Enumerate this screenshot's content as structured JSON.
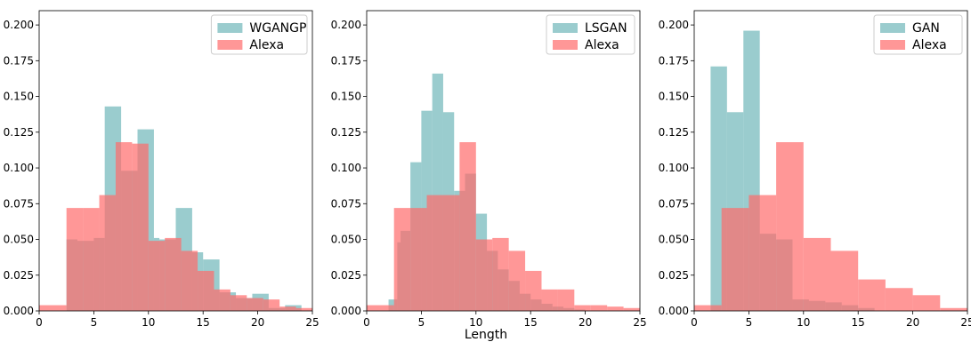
{
  "figure": {
    "xlabel": "Length",
    "colors": {
      "generated": "#6fb6b9",
      "real": "#ff6b6b",
      "generated_alpha": 0.7,
      "real_alpha": 0.7
    }
  },
  "chart_data": [
    {
      "type": "bar",
      "title": "",
      "xlabel": "",
      "ylabel": "",
      "xlim": [
        0,
        25
      ],
      "ylim": [
        0,
        0.21
      ],
      "xticks": [
        "0",
        "5",
        "10",
        "15",
        "20",
        "25"
      ],
      "yticks": [
        "0.000",
        "0.025",
        "0.050",
        "0.075",
        "0.100",
        "0.125",
        "0.150",
        "0.175",
        "0.200"
      ],
      "legend_position": "top-right",
      "series": [
        {
          "name": "WGANGP",
          "edges": [
            2.5,
            3.5,
            5,
            6,
            7.5,
            9,
            10.5,
            11,
            12.5,
            14,
            15,
            16.5,
            18,
            19.5,
            21,
            22.5,
            24
          ],
          "values": [
            0.05,
            0.049,
            0.051,
            0.143,
            0.098,
            0.127,
            0.051,
            0.05,
            0.072,
            0.041,
            0.036,
            0.013,
            0.009,
            0.012,
            0.002,
            0.004
          ]
        },
        {
          "name": "Alexa",
          "edges": [
            0,
            2.5,
            4,
            5.5,
            7,
            8.5,
            10,
            11.5,
            13,
            14.5,
            16,
            17.5,
            19,
            20.5,
            22,
            23.5,
            25
          ],
          "values": [
            0.004,
            0.072,
            0.072,
            0.081,
            0.118,
            0.117,
            0.049,
            0.051,
            0.042,
            0.028,
            0.015,
            0.011,
            0.009,
            0.008,
            0.003,
            0.002
          ]
        }
      ]
    },
    {
      "type": "bar",
      "title": "",
      "xlabel": "",
      "ylabel": "",
      "xlim": [
        0,
        25
      ],
      "ylim": [
        0,
        0.21
      ],
      "xticks": [
        "0",
        "5",
        "10",
        "15",
        "20",
        "25"
      ],
      "yticks": [
        "0.000",
        "0.025",
        "0.050",
        "0.075",
        "0.100",
        "0.125",
        "0.150",
        "0.175",
        "0.200"
      ],
      "legend_position": "top-right",
      "series": [
        {
          "name": "LSGAN",
          "edges": [
            2,
            2.8,
            3.1,
            4,
            5,
            6,
            7,
            8,
            9,
            10,
            11,
            12,
            13,
            14,
            15,
            16,
            17,
            18,
            19,
            20
          ],
          "values": [
            0.008,
            0.048,
            0.056,
            0.104,
            0.14,
            0.166,
            0.139,
            0.084,
            0.096,
            0.068,
            0.042,
            0.029,
            0.021,
            0.012,
            0.008,
            0.005,
            0.003,
            0.002,
            0.001
          ]
        },
        {
          "name": "Alexa",
          "edges": [
            0,
            2.5,
            4,
            5.5,
            7,
            8.5,
            10,
            11.5,
            13,
            14.5,
            16,
            17.5,
            19,
            20.5,
            22,
            23.5,
            25
          ],
          "values": [
            0.004,
            0.072,
            0.072,
            0.081,
            0.081,
            0.118,
            0.05,
            0.051,
            0.042,
            0.028,
            0.015,
            0.015,
            0.004,
            0.004,
            0.003,
            0.002
          ]
        }
      ]
    },
    {
      "type": "bar",
      "title": "",
      "xlabel": "",
      "ylabel": "",
      "xlim": [
        0,
        25
      ],
      "ylim": [
        0,
        0.21
      ],
      "xticks": [
        "0",
        "5",
        "10",
        "15",
        "20",
        "25"
      ],
      "yticks": [
        "0.000",
        "0.025",
        "0.050",
        "0.075",
        "0.100",
        "0.125",
        "0.150",
        "0.175",
        "0.200"
      ],
      "legend_position": "top-right",
      "series": [
        {
          "name": "GAN",
          "edges": [
            1.5,
            3,
            4.5,
            6,
            7.5,
            9,
            10.5,
            12,
            13.5,
            15,
            16.5
          ],
          "values": [
            0.171,
            0.139,
            0.196,
            0.054,
            0.05,
            0.008,
            0.007,
            0.006,
            0.004,
            0.002
          ]
        },
        {
          "name": "Alexa",
          "edges": [
            0,
            1.5,
            2.5,
            5,
            7.5,
            10,
            12.5,
            15,
            17.5,
            20,
            22.5,
            25
          ],
          "values": [
            0.004,
            0.004,
            0.072,
            0.081,
            0.118,
            0.051,
            0.042,
            0.022,
            0.016,
            0.011,
            0.002
          ]
        }
      ]
    }
  ]
}
